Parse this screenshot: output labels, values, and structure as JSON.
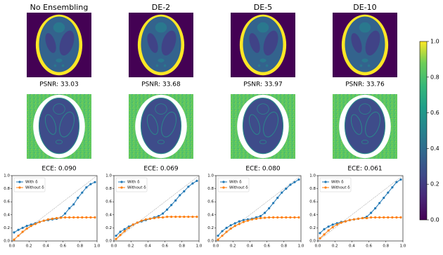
{
  "panels": [
    {
      "title": "No Ensembling",
      "psnr": "PSNR: 33.03",
      "ece": "ECE: 0.090"
    },
    {
      "title": "DE-2",
      "psnr": "PSNR: 33.68",
      "ece": "ECE: 0.069"
    },
    {
      "title": "DE-5",
      "psnr": "PSNR: 33.97",
      "ece": "ECE: 0.080"
    },
    {
      "title": "DE-10",
      "psnr": "PSNR: 33.76",
      "ece": "ECE: 0.061"
    }
  ],
  "chart_data": [
    {
      "type": "line",
      "legend": "upper left",
      "xlim": [
        0,
        1
      ],
      "ylim": [
        0,
        1
      ],
      "xticks": [
        {
          "value": 0,
          "label": "0.0"
        },
        {
          "value": 0.2,
          "label": "0.2"
        },
        {
          "value": 0.4,
          "label": "0.4"
        },
        {
          "value": 0.6,
          "label": "0.6"
        },
        {
          "value": 0.8,
          "label": "0.8"
        },
        {
          "value": 1,
          "label": "1.0"
        }
      ],
      "yticks": [
        {
          "value": 0,
          "label": "0.0"
        },
        {
          "value": 0.2,
          "label": "0.2"
        },
        {
          "value": 0.4,
          "label": "0.4"
        },
        {
          "value": 0.6,
          "label": "0.6"
        },
        {
          "value": 0.8,
          "label": "0.8"
        },
        {
          "value": 1,
          "label": "1.0"
        }
      ],
      "x": [
        0.025,
        0.075,
        0.125,
        0.175,
        0.225,
        0.275,
        0.325,
        0.375,
        0.425,
        0.475,
        0.525,
        0.575,
        0.625,
        0.675,
        0.725,
        0.775,
        0.825,
        0.875,
        0.925,
        0.975
      ],
      "series": [
        {
          "name": "With δ",
          "color": "#1f77b4",
          "values": [
            0.13,
            0.17,
            0.2,
            0.23,
            0.25,
            0.27,
            0.29,
            0.31,
            0.32,
            0.33,
            0.34,
            0.36,
            0.42,
            0.5,
            0.56,
            0.66,
            0.74,
            0.82,
            0.87,
            0.9
          ]
        },
        {
          "name": "Without δ",
          "color": "#ff7f0e",
          "values": [
            0.02,
            0.08,
            0.14,
            0.19,
            0.23,
            0.26,
            0.29,
            0.31,
            0.33,
            0.34,
            0.35,
            0.355,
            0.36,
            0.36,
            0.36,
            0.36,
            0.36,
            0.36,
            0.36,
            0.36
          ]
        }
      ]
    },
    {
      "type": "line",
      "legend": "upper left",
      "xlim": [
        0,
        1
      ],
      "ylim": [
        0,
        1
      ],
      "xticks": [
        {
          "value": 0,
          "label": "0.0"
        },
        {
          "value": 0.2,
          "label": "0.2"
        },
        {
          "value": 0.4,
          "label": "0.4"
        },
        {
          "value": 0.6,
          "label": "0.6"
        },
        {
          "value": 0.8,
          "label": "0.8"
        },
        {
          "value": 1,
          "label": "1.0"
        }
      ],
      "yticks": [
        {
          "value": 0,
          "label": "0.0"
        },
        {
          "value": 0.2,
          "label": "0.2"
        },
        {
          "value": 0.4,
          "label": "0.4"
        },
        {
          "value": 0.6,
          "label": "0.6"
        },
        {
          "value": 0.8,
          "label": "0.8"
        },
        {
          "value": 1,
          "label": "1.0"
        }
      ],
      "x": [
        0.025,
        0.075,
        0.125,
        0.175,
        0.225,
        0.275,
        0.325,
        0.375,
        0.425,
        0.475,
        0.525,
        0.575,
        0.625,
        0.675,
        0.725,
        0.775,
        0.825,
        0.875,
        0.925,
        0.975
      ],
      "series": [
        {
          "name": "With δ",
          "color": "#1f77b4",
          "values": [
            0.08,
            0.14,
            0.18,
            0.22,
            0.25,
            0.28,
            0.3,
            0.32,
            0.34,
            0.36,
            0.38,
            0.42,
            0.48,
            0.55,
            0.62,
            0.7,
            0.76,
            0.83,
            0.88,
            0.92
          ]
        },
        {
          "name": "Without δ",
          "color": "#ff7f0e",
          "values": [
            0.03,
            0.09,
            0.15,
            0.2,
            0.25,
            0.28,
            0.31,
            0.33,
            0.34,
            0.35,
            0.36,
            0.36,
            0.37,
            0.37,
            0.37,
            0.37,
            0.37,
            0.37,
            0.37,
            0.37
          ]
        }
      ]
    },
    {
      "type": "line",
      "legend": "upper left",
      "xlim": [
        0,
        1
      ],
      "ylim": [
        0,
        1
      ],
      "xticks": [
        {
          "value": 0,
          "label": "0.0"
        },
        {
          "value": 0.2,
          "label": "0.2"
        },
        {
          "value": 0.4,
          "label": "0.4"
        },
        {
          "value": 0.6,
          "label": "0.6"
        },
        {
          "value": 0.8,
          "label": "0.8"
        },
        {
          "value": 1,
          "label": "1.0"
        }
      ],
      "yticks": [
        {
          "value": 0,
          "label": "0.0"
        },
        {
          "value": 0.2,
          "label": "0.2"
        },
        {
          "value": 0.4,
          "label": "0.4"
        },
        {
          "value": 0.6,
          "label": "0.6"
        },
        {
          "value": 0.8,
          "label": "0.8"
        },
        {
          "value": 1,
          "label": "1.0"
        }
      ],
      "x": [
        0.025,
        0.075,
        0.125,
        0.175,
        0.225,
        0.275,
        0.325,
        0.375,
        0.425,
        0.475,
        0.525,
        0.575,
        0.625,
        0.675,
        0.725,
        0.775,
        0.825,
        0.875,
        0.925,
        0.975
      ],
      "series": [
        {
          "name": "With δ",
          "color": "#1f77b4",
          "values": [
            0.08,
            0.15,
            0.2,
            0.24,
            0.27,
            0.3,
            0.32,
            0.33,
            0.34,
            0.36,
            0.38,
            0.43,
            0.5,
            0.58,
            0.66,
            0.74,
            0.8,
            0.86,
            0.9,
            0.94
          ]
        },
        {
          "name": "Without δ",
          "color": "#ff7f0e",
          "values": [
            0.02,
            0.08,
            0.14,
            0.19,
            0.23,
            0.26,
            0.29,
            0.31,
            0.33,
            0.34,
            0.35,
            0.355,
            0.36,
            0.36,
            0.36,
            0.36,
            0.36,
            0.36,
            0.36,
            0.36
          ]
        }
      ]
    },
    {
      "type": "line",
      "legend": "upper left",
      "xlim": [
        0,
        1
      ],
      "ylim": [
        0,
        1
      ],
      "xticks": [
        {
          "value": 0,
          "label": "0.0"
        },
        {
          "value": 0.2,
          "label": "0.2"
        },
        {
          "value": 0.4,
          "label": "0.4"
        },
        {
          "value": 0.6,
          "label": "0.6"
        },
        {
          "value": 0.8,
          "label": "0.8"
        },
        {
          "value": 1,
          "label": "1.0"
        }
      ],
      "yticks": [
        {
          "value": 0,
          "label": "0.0"
        },
        {
          "value": 0.2,
          "label": "0.2"
        },
        {
          "value": 0.4,
          "label": "0.4"
        },
        {
          "value": 0.6,
          "label": "0.6"
        },
        {
          "value": 0.8,
          "label": "0.8"
        },
        {
          "value": 1,
          "label": "1.0"
        }
      ],
      "x": [
        0.025,
        0.075,
        0.125,
        0.175,
        0.225,
        0.275,
        0.325,
        0.375,
        0.425,
        0.475,
        0.525,
        0.575,
        0.625,
        0.675,
        0.725,
        0.775,
        0.825,
        0.875,
        0.925,
        0.975
      ],
      "series": [
        {
          "name": "With δ",
          "color": "#1f77b4",
          "values": [
            0.12,
            0.18,
            0.22,
            0.25,
            0.27,
            0.29,
            0.3,
            0.32,
            0.33,
            0.34,
            0.35,
            0.37,
            0.43,
            0.5,
            0.58,
            0.66,
            0.74,
            0.82,
            0.9,
            0.94
          ]
        },
        {
          "name": "Without δ",
          "color": "#ff7f0e",
          "values": [
            0.04,
            0.1,
            0.16,
            0.21,
            0.25,
            0.28,
            0.3,
            0.32,
            0.33,
            0.34,
            0.35,
            0.35,
            0.36,
            0.36,
            0.36,
            0.36,
            0.36,
            0.36,
            0.36,
            0.36
          ]
        }
      ]
    },
    {
      "type": "colorbar",
      "ylim": [
        0,
        1
      ],
      "yticks": [
        {
          "value": 0,
          "label": "0.0"
        },
        {
          "value": 0.2,
          "label": "0.2"
        },
        {
          "value": 0.4,
          "label": "0.4"
        },
        {
          "value": 0.6,
          "label": "0.6"
        },
        {
          "value": 0.8,
          "label": "0.8"
        },
        {
          "value": 1,
          "label": "1.0"
        }
      ]
    }
  ]
}
